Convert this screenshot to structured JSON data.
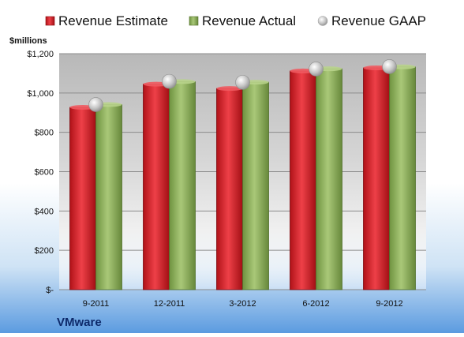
{
  "chart_data": {
    "type": "bar",
    "title": "",
    "ylabel": "$millions",
    "xlabel": "",
    "company": "VMware",
    "categories": [
      "9-2011",
      "12-2011",
      "3-2012",
      "6-2012",
      "9-2012"
    ],
    "series": [
      {
        "name": "Revenue Estimate",
        "kind": "bar",
        "color": "#d42128",
        "values": [
          927,
          1045,
          1023,
          1112,
          1128
        ]
      },
      {
        "name": "Revenue Actual",
        "kind": "bar",
        "color": "#8fb25a",
        "values": [
          941,
          1058,
          1055,
          1123,
          1133
        ]
      },
      {
        "name": "Revenue GAAP",
        "kind": "marker",
        "color": "#c0c0c0",
        "values": [
          941,
          1059,
          1054,
          1122,
          1134
        ]
      }
    ],
    "yticks": [
      0,
      200,
      400,
      600,
      800,
      1000,
      1200
    ],
    "yticklabels": [
      "$-",
      "$200",
      "$400",
      "$600",
      "$800",
      "$1,000",
      "$1,200"
    ],
    "ylim": [
      0,
      1200
    ],
    "grid": true,
    "legend_position": "top"
  }
}
